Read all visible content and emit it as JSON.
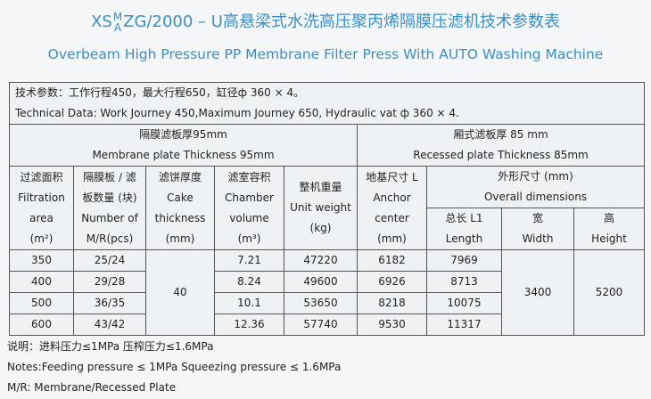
{
  "header": {
    "prefix": "XS",
    "stack_top": "M",
    "stack_bottom": "A",
    "rest": "ZG/2000 – U高悬梁式水洗高压聚丙烯隔膜压滤机技术参数表",
    "subtitle": "Overbeam High Pressure PP Membrane Filter Press With AUTO Washing Machine"
  },
  "technical_data": [
    "技术参数：工作行程450，最大行程650，缸径ф 360 × 4。",
    "Technical Data: Work Journey 450,Maximum Journey 650, Hydraulic vat ф 360 × 4."
  ],
  "plates": [
    [
      "隔膜滤板厚95mm",
      "Membrane plate Thickness 95mm"
    ],
    [
      "厢式滤板厚 85 mm",
      "Recessed plate Thickness 85mm"
    ]
  ],
  "table": {
    "columns": [
      [
        "过滤面积",
        "Filtration area",
        "(m²)"
      ],
      [
        "隔膜板 / 滤",
        "板数量 (块)",
        "Number of",
        "M/R(pcs)"
      ],
      [
        "滤饼厚度",
        "Cake",
        "thickness",
        "(mm)"
      ],
      [
        "滤室容积",
        "Chamber",
        "volume",
        "(m³)"
      ],
      [
        "整机重量",
        "Unit weight",
        "(kg)"
      ],
      [
        "地基尺寸 L",
        "Anchor",
        "center",
        "(mm)"
      ]
    ],
    "overall": {
      "label": [
        "外形尺寸 (mm)",
        "Overall dimensions"
      ],
      "sub": [
        [
          "总长 L1",
          "Length"
        ],
        [
          "宽",
          "Width"
        ],
        [
          "高",
          "Height"
        ]
      ]
    },
    "rows": [
      [
        350,
        "25/24",
        7.21,
        47220,
        6182,
        7969
      ],
      [
        400,
        "29/28",
        8.24,
        49600,
        6926,
        8713
      ],
      [
        500,
        "36/35",
        10.1,
        53650,
        8218,
        10075
      ],
      [
        600,
        "43/42",
        12.36,
        57740,
        9530,
        11317
      ]
    ],
    "cake": 40,
    "width": 3400,
    "height": 5200
  },
  "notes": [
    "说明：进料压力≤1MPa  压榨压力≤1.6MPa",
    "Notes:Feeding pressure ≤ 1MPa  Squeezing pressure ≤ 1.6MPa",
    "M/R: Membrane/Recessed Plate"
  ]
}
